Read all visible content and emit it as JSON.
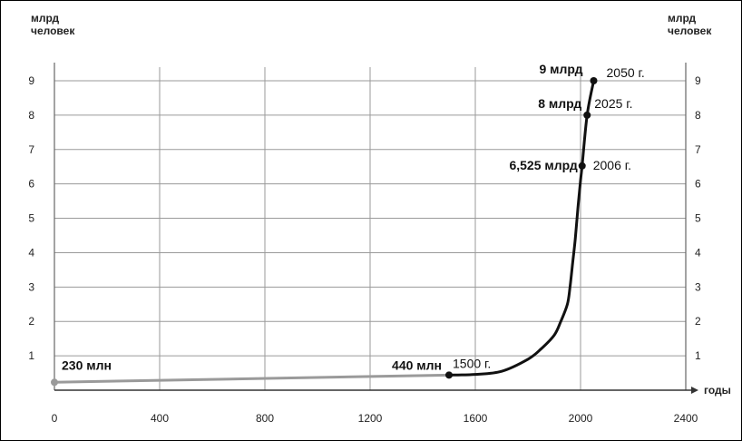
{
  "chart_data": {
    "type": "line",
    "ylabel_left": [
      "млрд",
      "человек"
    ],
    "ylabel_right": [
      "млрд",
      "человек"
    ],
    "xlabel": "годы",
    "xlim": [
      0,
      2400
    ],
    "ylim": [
      0,
      9
    ],
    "x_ticks": [
      "0",
      "400",
      "800",
      "1200",
      "1600",
      "2000",
      "2400"
    ],
    "y_ticks": [
      "1",
      "2",
      "3",
      "4",
      "5",
      "6",
      "7",
      "8",
      "9"
    ],
    "grid": true,
    "series": [
      {
        "x": [
          0,
          1500,
          1600,
          1700,
          1800,
          1850,
          1900,
          1925,
          1950,
          1960,
          1970,
          1980,
          1990,
          2000,
          2006,
          2025,
          2050
        ],
        "values": [
          0.23,
          0.44,
          0.46,
          0.55,
          0.9,
          1.2,
          1.6,
          2.0,
          2.5,
          3.0,
          3.7,
          4.4,
          5.3,
          6.1,
          6.525,
          8,
          9
        ]
      }
    ],
    "annotations": [
      {
        "x": 0,
        "y": 0.23,
        "value_label": "230 млн",
        "year_label": ""
      },
      {
        "x": 1500,
        "y": 0.44,
        "value_label": "440 млн",
        "year_label": "1500 г."
      },
      {
        "x": 2006,
        "y": 6.525,
        "value_label": "6,525 млрд",
        "year_label": "2006 г."
      },
      {
        "x": 2025,
        "y": 8,
        "value_label": "8 млрд",
        "year_label": "2025 г."
      },
      {
        "x": 2050,
        "y": 9,
        "value_label": "9 млрд",
        "year_label": "2050 г."
      }
    ]
  }
}
